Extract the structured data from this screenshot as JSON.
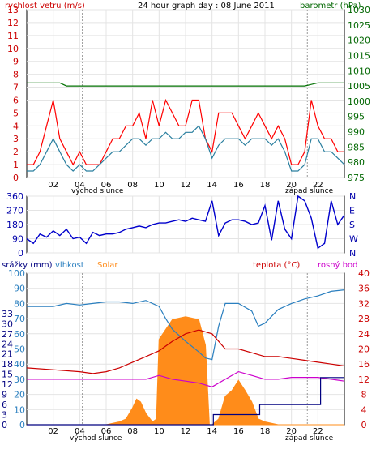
{
  "chart_data": [
    {
      "type": "line",
      "title": "24 hour graph day : 08 June 2011",
      "left_axis_label": "rychlost vetru (m/s)",
      "right_axis_label": "barometr (hPa)",
      "x_tick_labels": [
        "02",
        "04",
        "06",
        "08",
        "10",
        "12",
        "14",
        "16",
        "18",
        "20",
        "22"
      ],
      "sun_labels": {
        "sunrise": "východ slunce",
        "sunset": "západ slunce",
        "sunrise_hour": 4.2,
        "sunset_hour": 21.2
      },
      "y_left": {
        "min": 0,
        "max": 13,
        "ticks": [
          0,
          1,
          2,
          3,
          4,
          5,
          6,
          7,
          8,
          9,
          10,
          11,
          12,
          13
        ]
      },
      "y_right": {
        "min": 975,
        "max": 1030,
        "ticks": [
          975,
          980,
          985,
          990,
          995,
          1000,
          1005,
          1010,
          1015,
          1020,
          1025,
          1030
        ]
      },
      "series": [
        {
          "name": "rychlost vetru",
          "axis": "left",
          "color": "#ff0000",
          "x": [
            0,
            0.5,
            1,
            1.5,
            2,
            2.5,
            3,
            3.5,
            4,
            4.5,
            5,
            5.5,
            6,
            6.5,
            7,
            7.5,
            8,
            8.5,
            9,
            9.5,
            10,
            10.5,
            11,
            11.5,
            12,
            12.5,
            13,
            13.5,
            14,
            14.5,
            15,
            15.5,
            16,
            16.5,
            17,
            17.5,
            18,
            18.5,
            19,
            19.5,
            20,
            20.5,
            21,
            21.5,
            22,
            22.5,
            23,
            23.5,
            24
          ],
          "y": [
            1,
            1,
            2,
            4,
            6,
            3,
            2,
            1,
            2,
            1,
            1,
            1,
            2,
            3,
            3,
            4,
            4,
            5,
            3,
            6,
            4,
            6,
            5,
            4,
            4,
            6,
            6,
            3,
            2,
            5,
            5,
            5,
            4,
            3,
            4,
            5,
            4,
            3,
            4,
            3,
            1,
            1,
            2,
            6,
            4,
            3,
            3,
            2,
            2
          ]
        },
        {
          "name": "prumerna rychlost",
          "axis": "left",
          "color": "#2a7f9f",
          "x": [
            0,
            0.5,
            1,
            1.5,
            2,
            2.5,
            3,
            3.5,
            4,
            4.5,
            5,
            5.5,
            6,
            6.5,
            7,
            7.5,
            8,
            8.5,
            9,
            9.5,
            10,
            10.5,
            11,
            11.5,
            12,
            12.5,
            13,
            13.5,
            14,
            14.5,
            15,
            15.5,
            16,
            16.5,
            17,
            17.5,
            18,
            18.5,
            19,
            19.5,
            20,
            20.5,
            21,
            21.5,
            22,
            22.5,
            23,
            23.5,
            24
          ],
          "y": [
            0.5,
            0.5,
            1,
            2,
            3,
            2,
            1,
            0.5,
            1,
            0.5,
            0.5,
            1,
            1.5,
            2,
            2,
            2.5,
            3,
            3,
            2.5,
            3,
            3,
            3.5,
            3,
            3,
            3.5,
            3.5,
            4,
            3,
            1.5,
            2.5,
            3,
            3,
            3,
            2.5,
            3,
            3,
            3,
            2.5,
            3,
            2,
            0.5,
            0.5,
            1,
            3,
            3,
            2,
            2,
            1.5,
            1
          ]
        },
        {
          "name": "barometr",
          "axis": "right",
          "color": "#007000",
          "x": [
            0,
            2.5,
            3,
            8,
            9,
            14,
            14.5,
            18,
            20,
            21,
            22,
            23,
            24
          ],
          "y": [
            1006,
            1006,
            1005,
            1005,
            1005,
            1005,
            1005,
            1005,
            1005,
            1005,
            1006,
            1006,
            1006
          ]
        }
      ]
    },
    {
      "type": "line",
      "y_axis_ticks": [
        0,
        90,
        180,
        270,
        360
      ],
      "y_axis_directions": [
        "N",
        "W",
        "S",
        "E",
        "N"
      ],
      "series": [
        {
          "name": "smer vetru",
          "color": "#0000cc",
          "x": [
            0,
            0.5,
            1,
            1.5,
            2,
            2.5,
            3,
            3.5,
            4,
            4.5,
            5,
            5.5,
            6,
            6.5,
            7,
            7.5,
            8,
            8.5,
            9,
            9.5,
            10,
            10.5,
            11,
            11.5,
            12,
            12.5,
            13,
            13.5,
            14,
            14.5,
            15,
            15.5,
            16,
            16.5,
            17,
            17.5,
            18,
            18.5,
            19,
            19.5,
            20,
            20.5,
            21,
            21.5,
            22,
            22.5,
            23,
            23.5,
            24
          ],
          "y": [
            90,
            60,
            120,
            100,
            140,
            110,
            150,
            90,
            100,
            60,
            130,
            110,
            120,
            120,
            130,
            150,
            160,
            170,
            160,
            180,
            190,
            190,
            200,
            210,
            200,
            220,
            210,
            200,
            330,
            110,
            190,
            210,
            210,
            200,
            180,
            190,
            300,
            80,
            330,
            150,
            90,
            360,
            330,
            220,
            30,
            60,
            330,
            180,
            240
          ]
        }
      ]
    },
    {
      "type": "line",
      "labels": {
        "precip": "srážky (mm)",
        "humidity": "vlhkost",
        "solar": "Solar",
        "temperature": "teplota (°C)",
        "dewpoint": "rosný bod"
      },
      "x_tick_labels": [
        "02",
        "04",
        "06",
        "08",
        "10",
        "12",
        "14",
        "16",
        "18",
        "20",
        "22"
      ],
      "sun_labels": {
        "sunrise": "východ slunce",
        "sunset": "západ slunce"
      },
      "y_humidity": {
        "min": 0,
        "max": 100,
        "ticks": [
          0,
          10,
          20,
          30,
          40,
          50,
          60,
          70,
          80,
          90,
          100
        ]
      },
      "y_precip": {
        "min": 0,
        "max": 45,
        "ticks": [
          0,
          3,
          6,
          9,
          12,
          15,
          18,
          21,
          24,
          27,
          30,
          33
        ]
      },
      "y_temp": {
        "min": 0,
        "max": 40,
        "ticks": [
          0,
          4,
          8,
          12,
          16,
          20,
          24,
          28,
          32,
          36,
          40
        ]
      },
      "series": [
        {
          "name": "vlhkost",
          "axis": "humidity",
          "color": "#2a7fbf",
          "x": [
            0,
            2,
            3,
            4,
            5,
            6,
            7,
            8,
            9,
            10,
            10.5,
            11,
            12,
            13,
            13.5,
            14,
            14.5,
            15,
            16,
            17,
            17.5,
            18,
            19,
            20,
            21,
            22,
            23,
            24
          ],
          "y": [
            78,
            78,
            80,
            79,
            80,
            81,
            81,
            80,
            82,
            78,
            70,
            63,
            55,
            48,
            44,
            43,
            65,
            80,
            80,
            75,
            65,
            67,
            76,
            80,
            83,
            85,
            88,
            89
          ]
        },
        {
          "name": "teplota",
          "axis": "temp",
          "color": "#cc0000",
          "x": [
            0,
            2,
            4,
            5,
            6,
            7,
            8,
            9,
            10,
            11,
            12,
            13,
            14,
            15,
            16,
            17,
            18,
            19,
            20,
            21,
            22,
            23,
            24
          ],
          "y": [
            15,
            14.5,
            14,
            13.5,
            14,
            15,
            16.5,
            18,
            19.5,
            22,
            24,
            25,
            24,
            20,
            20,
            19,
            18,
            18,
            17.5,
            17,
            16.5,
            16,
            15.5
          ]
        },
        {
          "name": "rosný bod",
          "axis": "temp",
          "color": "#cc00cc",
          "x": [
            0,
            2,
            4,
            6,
            8,
            9,
            10,
            11,
            12,
            13,
            14,
            15,
            16,
            17,
            18,
            19,
            20,
            21,
            22,
            23,
            24
          ],
          "y": [
            12,
            12,
            12,
            12,
            12,
            12,
            13,
            12,
            11.5,
            11,
            10,
            12,
            14,
            13,
            12,
            12,
            12.5,
            12.5,
            12.5,
            12,
            11.5
          ]
        },
        {
          "name": "Solar",
          "axis": "solar",
          "color": "#ff8c1a",
          "x": [
            0,
            4,
            5,
            6,
            7,
            7.5,
            8,
            8.3,
            8.6,
            9,
            9.5,
            9.8,
            10,
            11,
            12,
            13,
            13.5,
            13.8,
            14,
            14.5,
            15,
            15.5,
            16,
            16.5,
            17,
            17.5,
            18,
            19,
            20,
            24
          ],
          "y": [
            0,
            0,
            0,
            0,
            5,
            10,
            30,
            45,
            40,
            20,
            5,
            10,
            150,
            185,
            190,
            185,
            140,
            0,
            0,
            10,
            50,
            60,
            78,
            60,
            40,
            10,
            5,
            0,
            0,
            0
          ]
        },
        {
          "name": "srážky",
          "axis": "precip",
          "color": "#000080",
          "x": [
            0,
            13.9,
            14,
            14.1,
            15,
            17.5,
            17.6,
            19,
            22,
            22.2,
            24
          ],
          "y": [
            0,
            0,
            0,
            3,
            3,
            3,
            6,
            6,
            6,
            14,
            14
          ]
        }
      ]
    }
  ]
}
